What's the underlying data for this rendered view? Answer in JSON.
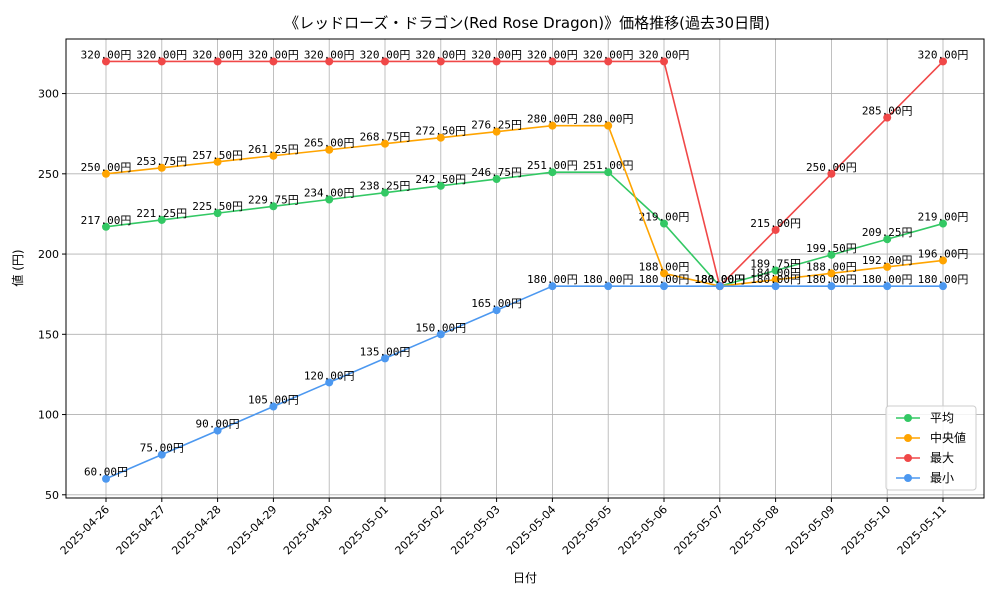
{
  "chart_data": {
    "type": "line",
    "title": "《レッドローズ・ドラゴン(Red Rose Dragon)》価格推移(過去30日間)",
    "xlabel": "日付",
    "ylabel": "値 (円)",
    "ylim": [
      48,
      334
    ],
    "yticks": [
      50,
      100,
      150,
      200,
      250,
      300
    ],
    "grid": true,
    "legend_position": "lower-right",
    "label_suffix": "円",
    "categories": [
      "2025-04-26",
      "2025-04-27",
      "2025-04-28",
      "2025-04-29",
      "2025-04-30",
      "2025-05-01",
      "2025-05-02",
      "2025-05-03",
      "2025-05-04",
      "2025-05-05",
      "2025-05-06",
      "2025-05-07",
      "2025-05-08",
      "2025-05-09",
      "2025-05-10",
      "2025-05-11"
    ],
    "series": [
      {
        "name": "平均",
        "color": "#33c864",
        "values": [
          217.0,
          221.25,
          225.5,
          229.75,
          234.0,
          238.25,
          242.5,
          246.75,
          251.0,
          251.0,
          219.0,
          180.0,
          189.75,
          199.5,
          209.25,
          219.0
        ]
      },
      {
        "name": "中央値",
        "color": "#ffa400",
        "values": [
          250.0,
          253.75,
          257.5,
          261.25,
          265.0,
          268.75,
          272.5,
          276.25,
          280.0,
          280.0,
          188.0,
          180.0,
          184.0,
          188.0,
          192.0,
          196.0
        ]
      },
      {
        "name": "最大",
        "color": "#f04848",
        "values": [
          320.0,
          320.0,
          320.0,
          320.0,
          320.0,
          320.0,
          320.0,
          320.0,
          320.0,
          320.0,
          320.0,
          180.0,
          215.0,
          250.0,
          285.0,
          320.0
        ]
      },
      {
        "name": "最小",
        "color": "#4c98f0",
        "values": [
          60.0,
          75.0,
          90.0,
          105.0,
          120.0,
          135.0,
          150.0,
          165.0,
          180.0,
          180.0,
          180.0,
          180.0,
          180.0,
          180.0,
          180.0,
          180.0
        ]
      }
    ]
  }
}
